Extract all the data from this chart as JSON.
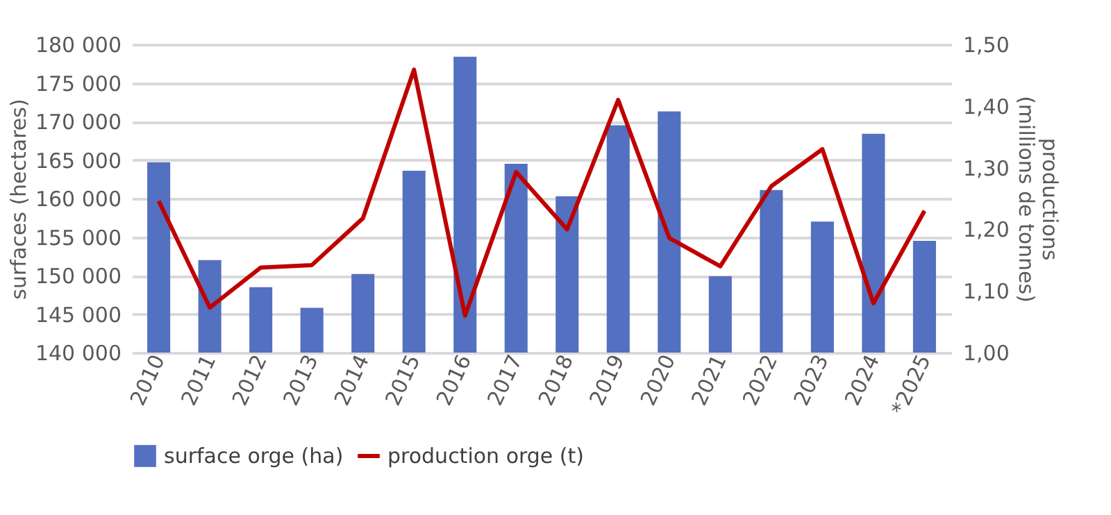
{
  "chart_data": {
    "type": "bar",
    "ylabel": "surfaces (hectares)",
    "y2label": "productions\n(millions de tonnes)",
    "categories": [
      "2010",
      "2011",
      "2012",
      "2013",
      "2014",
      "2015",
      "2016",
      "2017",
      "2018",
      "2019",
      "2020",
      "2021",
      "2022",
      "2023",
      "2024",
      "*2025"
    ],
    "series": [
      {
        "name": "surface orge (ha)",
        "color": "#5470c0",
        "values": [
          164700,
          152000,
          148500,
          145800,
          150200,
          163600,
          178400,
          164500,
          160300,
          169500,
          171300,
          149900,
          161100,
          157000,
          168400,
          154500
        ]
      },
      {
        "name": "production orge (t)",
        "type": "line",
        "axis": "y2",
        "color": "#c00000",
        "values": [
          1.246,
          1.073,
          1.138,
          1.142,
          1.218,
          1.459,
          1.06,
          1.293,
          1.2,
          1.41,
          1.186,
          1.14,
          1.27,
          1.33,
          1.08,
          1.23
        ]
      }
    ],
    "ylim": [
      140000,
      180000
    ],
    "yticks": [
      {
        "value": 140000,
        "label": "140 000"
      },
      {
        "value": 145000,
        "label": "145 000"
      },
      {
        "value": 150000,
        "label": "150 000"
      },
      {
        "value": 155000,
        "label": "155 000"
      },
      {
        "value": 160000,
        "label": "160 000"
      },
      {
        "value": 165000,
        "label": "165 000"
      },
      {
        "value": 170000,
        "label": "170 000"
      },
      {
        "value": 175000,
        "label": "175 000"
      },
      {
        "value": 180000,
        "label": "180 000"
      }
    ],
    "y2lim": [
      1.0,
      1.5
    ],
    "y2ticks": [
      {
        "value": 1.0,
        "label": "1,00"
      },
      {
        "value": 1.1,
        "label": "1,10"
      },
      {
        "value": 1.2,
        "label": "1,20"
      },
      {
        "value": 1.3,
        "label": "1,30"
      },
      {
        "value": 1.4,
        "label": "1,40"
      },
      {
        "value": 1.5,
        "label": "1,50"
      }
    ],
    "grid": "y",
    "legend": "bottom",
    "marker": "none",
    "line_style": "solid"
  }
}
